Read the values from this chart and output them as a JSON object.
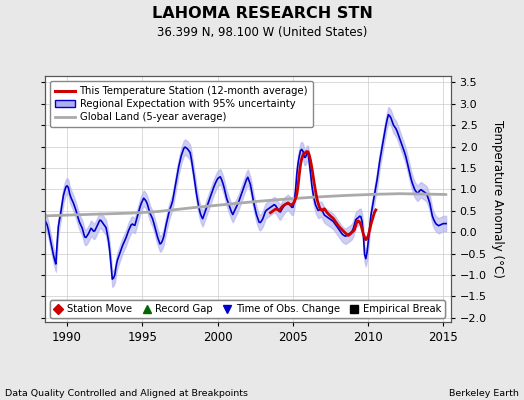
{
  "title": "LAHOMA RESEARCH STN",
  "subtitle": "36.399 N, 98.100 W (United States)",
  "ylabel": "Temperature Anomaly (°C)",
  "xlabel_left": "Data Quality Controlled and Aligned at Breakpoints",
  "xlabel_right": "Berkeley Earth",
  "ylim": [
    -2.1,
    3.65
  ],
  "xlim": [
    1988.5,
    2015.5
  ],
  "xticks": [
    1990,
    1995,
    2000,
    2005,
    2010,
    2015
  ],
  "yticks": [
    -2,
    -1.5,
    -1,
    -0.5,
    0,
    0.5,
    1,
    1.5,
    2,
    2.5,
    3,
    3.5
  ],
  "bg_color": "#e8e8e8",
  "plot_bg_color": "#ffffff",
  "grid_color": "#cccccc",
  "blue_line_color": "#0000cc",
  "blue_fill_color": "#b0b0ee",
  "red_line_color": "#cc0000",
  "gray_line_color": "#aaaaaa",
  "legend1_entries": [
    {
      "label": "This Temperature Station (12-month average)",
      "color": "#cc0000",
      "lw": 2.5
    },
    {
      "label": "Regional Expectation with 95% uncertainty",
      "color": "#0000cc",
      "fill": "#b0b0ee"
    },
    {
      "label": "Global Land (5-year average)",
      "color": "#aaaaaa",
      "lw": 2
    }
  ],
  "legend2_entries": [
    {
      "label": "Station Move",
      "marker": "D",
      "color": "#cc0000"
    },
    {
      "label": "Record Gap",
      "marker": "^",
      "color": "#006600"
    },
    {
      "label": "Time of Obs. Change",
      "marker": "v",
      "color": "#0000cc"
    },
    {
      "label": "Empirical Break",
      "marker": "s",
      "color": "#000000"
    }
  ]
}
